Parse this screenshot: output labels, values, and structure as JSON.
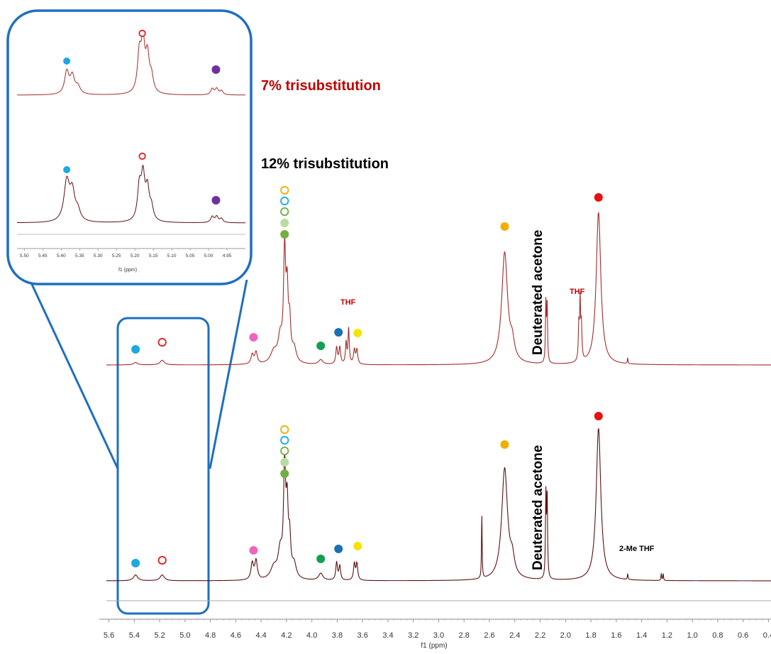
{
  "chart_data": {
    "type": "line",
    "title": "",
    "xlabel": "f1 (ppm)",
    "x_reversed": true,
    "xlim": [
      5.62,
      0.38
    ],
    "x_ticks": [
      5.6,
      5.4,
      5.2,
      5.0,
      4.8,
      4.6,
      4.4,
      4.2,
      4.0,
      3.8,
      3.6,
      3.4,
      3.2,
      3.0,
      2.8,
      2.6,
      2.4,
      2.2,
      2.0,
      1.8,
      1.6,
      1.4,
      1.2,
      1.0,
      0.8,
      0.6,
      0.4
    ],
    "x_tick_labels": [
      "5.6",
      "5.4",
      "5.2",
      "5.0",
      "4.8",
      "4.6",
      "4.4",
      "4.2",
      "4.0",
      "3.8",
      "3.6",
      "3.4",
      "3.2",
      "3.0",
      "2.8",
      "2.6",
      "2.4",
      "2.2",
      "2.0",
      "1.8",
      "1.6",
      "1.4",
      "1.2",
      "1.0",
      "0.8",
      "0.6",
      "0.4"
    ],
    "grid": false,
    "series": [
      {
        "name": "7% trisubstitution",
        "color": "#a52a2a",
        "peaks": [
          {
            "ppm": 5.39,
            "height": 0.02,
            "width": 0.02
          },
          {
            "ppm": 5.18,
            "height": 0.04,
            "width": 0.02
          },
          {
            "ppm": 4.47,
            "height": 0.08,
            "width": 0.012
          },
          {
            "ppm": 4.44,
            "height": 0.1,
            "width": 0.012
          },
          {
            "ppm": 4.3,
            "height": 0.1,
            "width": 0.03
          },
          {
            "ppm": 4.25,
            "height": 0.2,
            "width": 0.02
          },
          {
            "ppm": 4.215,
            "height": 0.9,
            "width": 0.01
          },
          {
            "ppm": 4.195,
            "height": 0.55,
            "width": 0.01
          },
          {
            "ppm": 4.175,
            "height": 0.3,
            "width": 0.01
          },
          {
            "ppm": 4.14,
            "height": 0.12,
            "width": 0.02
          },
          {
            "ppm": 3.93,
            "height": 0.04,
            "width": 0.02
          },
          {
            "ppm": 3.805,
            "height": 0.14,
            "width": 0.008
          },
          {
            "ppm": 3.78,
            "height": 0.14,
            "width": 0.008
          },
          {
            "ppm": 3.73,
            "height": 0.18,
            "width": 0.006
          },
          {
            "ppm": 3.71,
            "height": 0.3,
            "width": 0.006
          },
          {
            "ppm": 3.665,
            "height": 0.12,
            "width": 0.008
          },
          {
            "ppm": 3.645,
            "height": 0.12,
            "width": 0.008
          },
          {
            "ppm": 2.48,
            "height": 0.95,
            "width": 0.028
          },
          {
            "ppm": 2.42,
            "height": 0.14,
            "width": 0.02
          },
          {
            "ppm": 2.155,
            "height": 0.5,
            "width": 0.004
          },
          {
            "ppm": 2.145,
            "height": 0.5,
            "width": 0.004
          },
          {
            "ppm": 1.895,
            "height": 0.3,
            "width": 0.005
          },
          {
            "ppm": 1.885,
            "height": 0.48,
            "width": 0.004
          },
          {
            "ppm": 1.875,
            "height": 0.3,
            "width": 0.005
          },
          {
            "ppm": 1.74,
            "height": 1.3,
            "width": 0.022
          },
          {
            "ppm": 1.51,
            "height": 0.05,
            "width": 0.003
          }
        ]
      },
      {
        "name": "12% trisubstitution",
        "color": "#5a1010",
        "peaks": [
          {
            "ppm": 5.39,
            "height": 0.05,
            "width": 0.02
          },
          {
            "ppm": 5.18,
            "height": 0.05,
            "width": 0.02
          },
          {
            "ppm": 4.47,
            "height": 0.14,
            "width": 0.012
          },
          {
            "ppm": 4.44,
            "height": 0.16,
            "width": 0.012
          },
          {
            "ppm": 4.3,
            "height": 0.1,
            "width": 0.03
          },
          {
            "ppm": 4.25,
            "height": 0.22,
            "width": 0.02
          },
          {
            "ppm": 4.215,
            "height": 0.9,
            "width": 0.01
          },
          {
            "ppm": 4.195,
            "height": 0.55,
            "width": 0.01
          },
          {
            "ppm": 4.175,
            "height": 0.3,
            "width": 0.01
          },
          {
            "ppm": 4.14,
            "height": 0.12,
            "width": 0.02
          },
          {
            "ppm": 3.93,
            "height": 0.06,
            "width": 0.02
          },
          {
            "ppm": 3.805,
            "height": 0.15,
            "width": 0.008
          },
          {
            "ppm": 3.78,
            "height": 0.12,
            "width": 0.008
          },
          {
            "ppm": 3.665,
            "height": 0.14,
            "width": 0.008
          },
          {
            "ppm": 3.645,
            "height": 0.14,
            "width": 0.008
          },
          {
            "ppm": 2.66,
            "height": 0.55,
            "width": 0.003
          },
          {
            "ppm": 2.48,
            "height": 0.95,
            "width": 0.028
          },
          {
            "ppm": 2.42,
            "height": 0.14,
            "width": 0.02
          },
          {
            "ppm": 2.155,
            "height": 0.7,
            "width": 0.004
          },
          {
            "ppm": 2.145,
            "height": 0.7,
            "width": 0.004
          },
          {
            "ppm": 1.74,
            "height": 1.3,
            "width": 0.022
          },
          {
            "ppm": 1.51,
            "height": 0.05,
            "width": 0.003
          },
          {
            "ppm": 1.245,
            "height": 0.06,
            "width": 0.003
          },
          {
            "ppm": 1.23,
            "height": 0.06,
            "width": 0.003
          }
        ]
      }
    ],
    "annotations": [
      {
        "text": "THF",
        "color": "#c00000"
      },
      {
        "text": "THF",
        "color": "#c00000"
      },
      {
        "text": "Deuterated acetone",
        "color": "#000000"
      },
      {
        "text": "Deuterated acetone",
        "color": "#000000"
      },
      {
        "text": "2-Me THF",
        "color": "#000000"
      }
    ],
    "markers": [
      {
        "ppm": 5.39,
        "style": "filled",
        "color": "#1ea7e1",
        "series": 0
      },
      {
        "ppm": 5.18,
        "style": "open",
        "color": "#e02020",
        "series": 0
      },
      {
        "ppm": 4.46,
        "style": "filled",
        "color": "#f064c0",
        "series": 0
      },
      {
        "ppm": 3.93,
        "style": "filled",
        "color": "#10a050",
        "series": 0
      },
      {
        "ppm": 3.79,
        "style": "filled",
        "color": "#1a6fb5",
        "series": 0
      },
      {
        "ppm": 3.65,
        "style": "filled",
        "color": "#f5e400",
        "series": 0
      },
      {
        "ppm": 2.48,
        "style": "filled",
        "color": "#f0b000",
        "series": 0
      },
      {
        "ppm": 1.74,
        "style": "filled",
        "color": "#e81010",
        "series": 0
      },
      {
        "ppm": 5.39,
        "style": "filled",
        "color": "#1ea7e1",
        "series": 1
      },
      {
        "ppm": 5.18,
        "style": "open",
        "color": "#e02020",
        "series": 1
      },
      {
        "ppm": 4.46,
        "style": "filled",
        "color": "#f064c0",
        "series": 1
      },
      {
        "ppm": 3.93,
        "style": "filled",
        "color": "#10a050",
        "series": 1
      },
      {
        "ppm": 3.79,
        "style": "filled",
        "color": "#1a6fb5",
        "series": 1
      },
      {
        "ppm": 3.65,
        "style": "filled",
        "color": "#f5e400",
        "series": 1
      },
      {
        "ppm": 2.48,
        "style": "filled",
        "color": "#f0b000",
        "series": 1
      },
      {
        "ppm": 1.74,
        "style": "filled",
        "color": "#e81010",
        "series": 1
      }
    ],
    "stacked_markers": [
      {
        "style": "open",
        "color": "#f0b000"
      },
      {
        "style": "open",
        "color": "#1ea7e1"
      },
      {
        "style": "open",
        "color": "#70b040"
      },
      {
        "style": "filled",
        "color": "#b8dca0"
      },
      {
        "style": "filled",
        "color": "#70b040"
      }
    ]
  },
  "inset": {
    "xlabel": "f1 (ppm)",
    "xlim": [
      5.52,
      4.9
    ],
    "x_ticks": [
      5.5,
      5.45,
      5.4,
      5.35,
      5.3,
      5.25,
      5.2,
      5.15,
      5.1,
      5.05,
      5.0,
      4.95
    ],
    "x_tick_labels": [
      "5.50",
      "5.45",
      "5.40",
      "5.35",
      "5.30",
      "5.25",
      "5.20",
      "5.15",
      "5.10",
      "5.05",
      "5.00",
      "4.95"
    ],
    "series": [
      {
        "name": "7% trisubstitution",
        "color": "#a52a2a",
        "peaks": [
          {
            "ppm": 5.385,
            "height": 0.45,
            "width": 0.007
          },
          {
            "ppm": 5.37,
            "height": 0.35,
            "width": 0.007
          },
          {
            "ppm": 5.355,
            "height": 0.15,
            "width": 0.008
          },
          {
            "ppm": 5.188,
            "height": 0.75,
            "width": 0.006
          },
          {
            "ppm": 5.178,
            "height": 0.95,
            "width": 0.006
          },
          {
            "ppm": 5.166,
            "height": 0.7,
            "width": 0.006
          },
          {
            "ppm": 5.155,
            "height": 0.3,
            "width": 0.006
          },
          {
            "ppm": 4.99,
            "height": 0.12,
            "width": 0.005
          },
          {
            "ppm": 4.978,
            "height": 0.12,
            "width": 0.005
          },
          {
            "ppm": 4.965,
            "height": 0.08,
            "width": 0.005
          }
        ]
      },
      {
        "name": "12% trisubstitution",
        "color": "#5a1010",
        "peaks": [
          {
            "ppm": 5.385,
            "height": 0.8,
            "width": 0.009
          },
          {
            "ppm": 5.37,
            "height": 0.55,
            "width": 0.008
          },
          {
            "ppm": 5.355,
            "height": 0.2,
            "width": 0.008
          },
          {
            "ppm": 5.188,
            "height": 0.65,
            "width": 0.006
          },
          {
            "ppm": 5.178,
            "height": 0.85,
            "width": 0.006
          },
          {
            "ppm": 5.166,
            "height": 0.6,
            "width": 0.006
          },
          {
            "ppm": 5.155,
            "height": 0.25,
            "width": 0.006
          },
          {
            "ppm": 4.99,
            "height": 0.12,
            "width": 0.005
          },
          {
            "ppm": 4.978,
            "height": 0.12,
            "width": 0.005
          },
          {
            "ppm": 4.965,
            "height": 0.08,
            "width": 0.005
          }
        ]
      }
    ],
    "markers": [
      {
        "ppm": 5.385,
        "style": "filled",
        "color": "#1ea7e1",
        "series": 0
      },
      {
        "ppm": 5.18,
        "style": "open",
        "color": "#e02020",
        "series": 0
      },
      {
        "ppm": 4.98,
        "style": "filled",
        "color": "#7030a0",
        "series": 0
      },
      {
        "ppm": 5.385,
        "style": "filled",
        "color": "#1ea7e1",
        "series": 1
      },
      {
        "ppm": 5.18,
        "style": "open",
        "color": "#e02020",
        "series": 1
      },
      {
        "ppm": 4.98,
        "style": "filled",
        "color": "#7030a0",
        "series": 1
      }
    ]
  },
  "labels": {
    "series1_title": "7% trisubstitution",
    "series1_color": "#c00000",
    "series2_title": "12% trisubstitution",
    "series2_color": "#000000",
    "callout_color": "#1f6fbf"
  }
}
